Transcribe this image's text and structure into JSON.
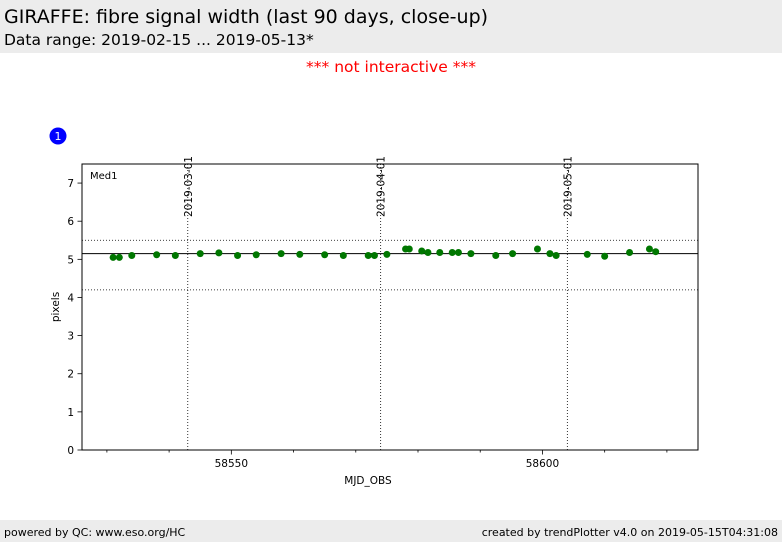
{
  "header": {
    "title": "GIRAFFE: fibre signal width (last 90 days, close-up)",
    "subtitle": "Data range: 2019-02-15 ... 2019-05-13*"
  },
  "notice": "*** not interactive ***",
  "badge": {
    "label": "1",
    "color": "#0000ff"
  },
  "footer": {
    "left": "powered by QC: www.eso.org/HC",
    "right": "created by trendPlotter v4.0 on 2019-05-15T04:31:08"
  },
  "chart_data": {
    "type": "scatter",
    "panel_label": "Med1",
    "xlabel": "MJD_OBS",
    "ylabel": "pixels",
    "xlim": [
      58526,
      58625
    ],
    "ylim": [
      0,
      7.5
    ],
    "x_ticks": [
      58550,
      58600
    ],
    "x_tick_labels": [
      "58550",
      "58600"
    ],
    "y_ticks": [
      0,
      1,
      2,
      3,
      4,
      5,
      6,
      7
    ],
    "y_tick_labels": [
      "0",
      "1",
      "2",
      "3",
      "4",
      "5",
      "6",
      "7"
    ],
    "date_lines": [
      {
        "mjd": 58543,
        "label": "2019-03-01"
      },
      {
        "mjd": 58574,
        "label": "2019-04-01"
      },
      {
        "mjd": 58604,
        "label": "2019-05-01"
      }
    ],
    "reference_lines": {
      "median": 5.15,
      "upper": 5.5,
      "lower": 4.2
    },
    "point_color": "#007700",
    "grid": false,
    "x": [
      58531,
      58532,
      58534,
      58538,
      58541,
      58545,
      58548,
      58551,
      58554,
      58558,
      58561,
      58565,
      58568,
      58572,
      58573,
      58575,
      58578,
      58578.6,
      58580.6,
      58581.6,
      58583.5,
      58585.5,
      58586.5,
      58588.5,
      58592.5,
      58595.2,
      58599.2,
      58601.2,
      58602.2,
      58607.2,
      58610,
      58614,
      58617.2,
      58618.2
    ],
    "y": [
      5.05,
      5.05,
      5.1,
      5.12,
      5.1,
      5.15,
      5.17,
      5.1,
      5.12,
      5.15,
      5.13,
      5.12,
      5.1,
      5.1,
      5.1,
      5.13,
      5.27,
      5.27,
      5.22,
      5.18,
      5.18,
      5.18,
      5.18,
      5.15,
      5.1,
      5.15,
      5.27,
      5.15,
      5.1,
      5.13,
      5.08,
      5.18,
      5.27,
      5.2
    ]
  }
}
